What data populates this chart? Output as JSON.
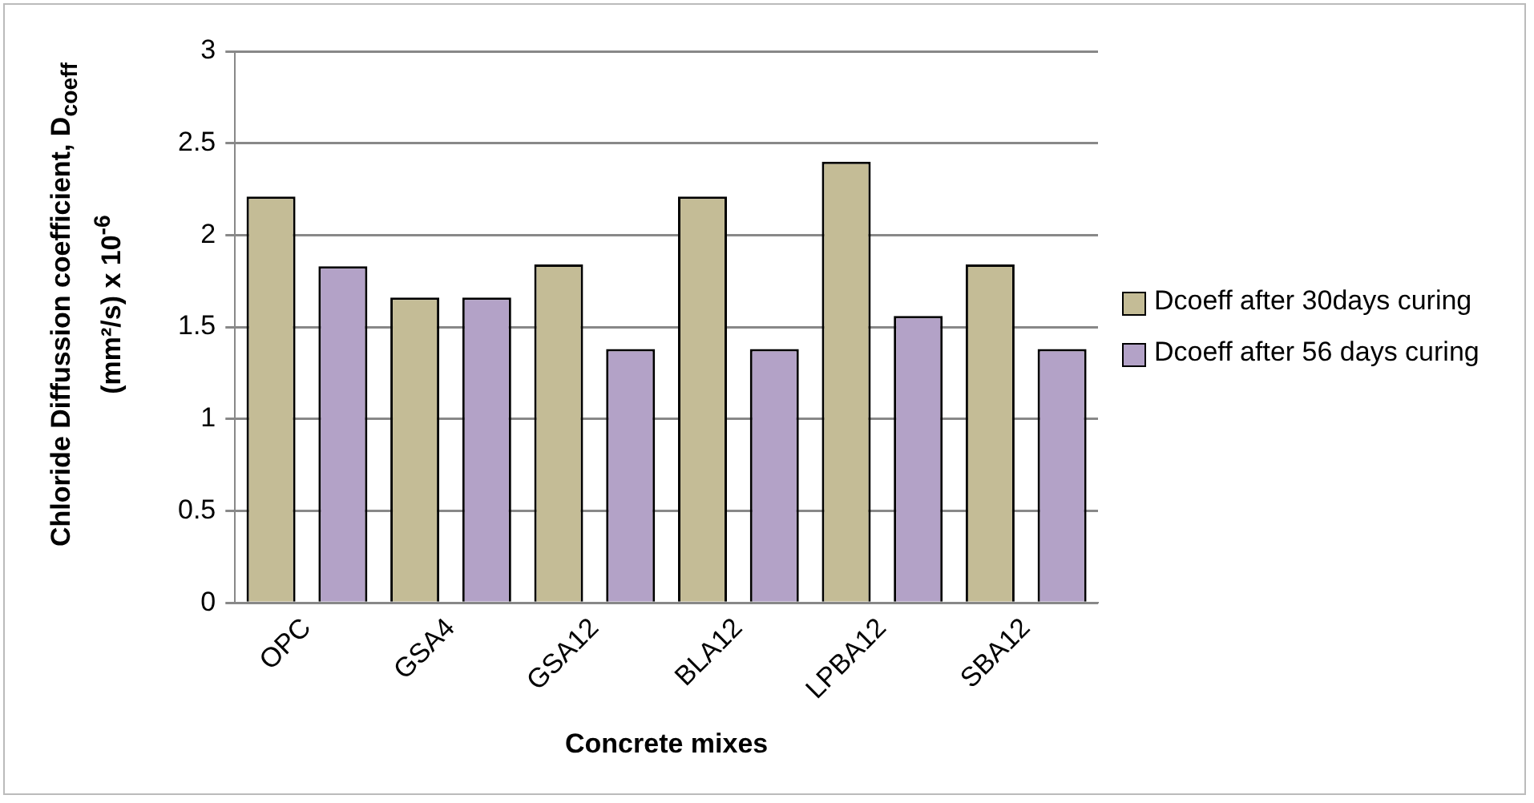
{
  "chart_data": {
    "type": "bar",
    "xlabel": "Concrete mixes",
    "ylabel": "Chloride Diffussion coefficient, D$_{coeff}$ (mm²/s) x 10$^{-6}$",
    "categories": [
      "OPC",
      "GSA4",
      "GSA12",
      "BLA12",
      "LPBA12",
      "SBA12"
    ],
    "series": [
      {
        "name": "Dcoeff  after 30days curing",
        "color": "#c4bc96",
        "values": [
          2.21,
          1.66,
          1.84,
          2.21,
          2.4,
          1.84
        ]
      },
      {
        "name": "Dcoeff after 56 days curing",
        "color": "#b3a2c7",
        "values": [
          1.83,
          1.66,
          1.38,
          1.38,
          1.56,
          1.38
        ]
      }
    ],
    "ylim": [
      0,
      3
    ],
    "yticks": [
      0,
      0.5,
      1,
      1.5,
      2,
      2.5,
      3
    ],
    "grid": "y",
    "legend": "right"
  }
}
